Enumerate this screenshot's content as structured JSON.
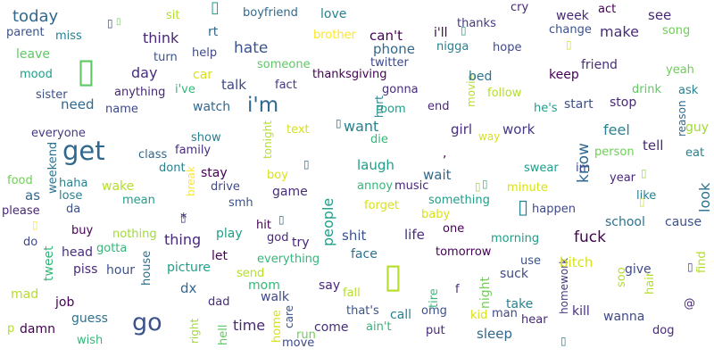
{
  "words": [
    {
      "text": "today",
      "color": "#31688e"
    },
    {
      "text": "parent",
      "color": "#3b528b"
    },
    {
      "text": "miss",
      "color": "#26828e"
    },
    {
      "text": "leave",
      "color": "#5ec962"
    },
    {
      "text": "mood",
      "color": "#1f9e89"
    },
    {
      "text": "sister",
      "color": "#3b528b"
    },
    {
      "text": "need",
      "color": "#31688e"
    },
    {
      "text": "everyone",
      "color": "#443983"
    },
    {
      "text": "get",
      "color": "#31688e"
    },
    {
      "text": "food",
      "color": "#6ece58"
    },
    {
      "text": "as",
      "color": "#31688e"
    },
    {
      "text": "please",
      "color": "#482878"
    },
    {
      "text": "do",
      "color": "#3e4989"
    },
    {
      "text": "mad",
      "color": "#b5de2b"
    },
    {
      "text": "p",
      "color": "#b5de2b"
    },
    {
      "text": "damn",
      "color": "#440154"
    },
    {
      "text": "haha",
      "color": "#26828e"
    },
    {
      "text": "lose",
      "color": "#26828e"
    },
    {
      "text": "da",
      "color": "#3b528b"
    },
    {
      "text": "tweet",
      "color": "#35b779"
    },
    {
      "text": "head",
      "color": "#472d7b"
    },
    {
      "text": "job",
      "color": "#440154"
    },
    {
      "text": "guess",
      "color": "#2c728e"
    },
    {
      "text": "wish",
      "color": "#35b779"
    },
    {
      "text": "go",
      "color": "#3b528b"
    },
    {
      "text": "weekend",
      "color": "#2c728e"
    },
    {
      "text": "wake",
      "color": "#b5de2b"
    },
    {
      "text": "mean",
      "color": "#1f9e89"
    },
    {
      "text": "buy",
      "color": "#440154"
    },
    {
      "text": "gotta",
      "color": "#35b779"
    },
    {
      "text": "piss",
      "color": "#482878"
    },
    {
      "text": "hour",
      "color": "#3b528b"
    },
    {
      "text": "nothing",
      "color": "#a0da39"
    },
    {
      "text": "house",
      "color": "#2c728e"
    },
    {
      "text": "sit",
      "color": "#b5de2b"
    },
    {
      "text": "think",
      "color": "#482878"
    },
    {
      "text": "turn",
      "color": "#3b528b"
    },
    {
      "text": "day",
      "color": "#472d7b"
    },
    {
      "text": "anything",
      "color": "#482878"
    },
    {
      "text": "name",
      "color": "#3e4989"
    },
    {
      "text": "class",
      "color": "#31688e"
    },
    {
      "text": "dont",
      "color": "#26828e"
    },
    {
      "text": "break",
      "color": "#fde725"
    },
    {
      "text": "*",
      "color": "#443983"
    },
    {
      "text": "thing",
      "color": "#482878"
    },
    {
      "text": "picture",
      "color": "#1f9e89"
    },
    {
      "text": "dx",
      "color": "#31688e"
    },
    {
      "text": "right",
      "color": "#a0da39"
    },
    {
      "text": "dad",
      "color": "#472d7b"
    },
    {
      "text": "rt",
      "color": "#31688e"
    },
    {
      "text": "help",
      "color": "#3e4989"
    },
    {
      "text": "car",
      "color": "#d8e219"
    },
    {
      "text": "i've",
      "color": "#35b779"
    },
    {
      "text": "watch",
      "color": "#31688e"
    },
    {
      "text": "show",
      "color": "#26828e"
    },
    {
      "text": "family",
      "color": "#472d7b"
    },
    {
      "text": "stay",
      "color": "#440154"
    },
    {
      "text": "drive",
      "color": "#3e4989"
    },
    {
      "text": "smh",
      "color": "#3b528b"
    },
    {
      "text": "play",
      "color": "#1f9e89"
    },
    {
      "text": "let",
      "color": "#440154"
    },
    {
      "text": "mom",
      "color": "#35b779"
    },
    {
      "text": "time",
      "color": "#482878"
    },
    {
      "text": "hell",
      "color": "#5ec962"
    },
    {
      "text": "boyfriend",
      "color": "#31688e"
    },
    {
      "text": "hate",
      "color": "#3b528b"
    },
    {
      "text": "i'm",
      "color": "#31688e"
    },
    {
      "text": "talk",
      "color": "#3e4989"
    },
    {
      "text": "tonight",
      "color": "#b5de2b"
    },
    {
      "text": "boy",
      "color": "#d8e219"
    },
    {
      "text": "game",
      "color": "#472d7b"
    },
    {
      "text": "hit",
      "color": "#440154"
    },
    {
      "text": "god",
      "color": "#482878"
    },
    {
      "text": "everything",
      "color": "#35b779"
    },
    {
      "text": "send",
      "color": "#b5de2b"
    },
    {
      "text": "walk",
      "color": "#3e4989"
    },
    {
      "text": "home",
      "color": "#d8e219"
    },
    {
      "text": "care",
      "color": "#3b528b"
    },
    {
      "text": "move",
      "color": "#3e4989"
    },
    {
      "text": "run",
      "color": "#6ece58"
    },
    {
      "text": "love",
      "color": "#26828e"
    },
    {
      "text": "brother",
      "color": "#fde725"
    },
    {
      "text": "someone",
      "color": "#5ec962"
    },
    {
      "text": "fact",
      "color": "#443983"
    },
    {
      "text": "text",
      "color": "#d8e219"
    },
    {
      "text": "try",
      "color": "#482878"
    },
    {
      "text": "people",
      "color": "#1f9e89"
    },
    {
      "text": "say",
      "color": "#482878"
    },
    {
      "text": "come",
      "color": "#472d7b"
    },
    {
      "text": "shit",
      "color": "#3b528b"
    },
    {
      "text": "fall",
      "color": "#b5de2b"
    },
    {
      "text": "that's",
      "color": "#3b528b"
    },
    {
      "text": "ain't",
      "color": "#35b779"
    },
    {
      "text": "thanksgiving",
      "color": "#440154"
    },
    {
      "text": "can't",
      "color": "#440154"
    },
    {
      "text": "phone",
      "color": "#31688e"
    },
    {
      "text": "twitter",
      "color": "#3e4989"
    },
    {
      "text": "want",
      "color": "#26828e"
    },
    {
      "text": "laugh",
      "color": "#1f9e89"
    },
    {
      "text": "annoy",
      "color": "#35b779"
    },
    {
      "text": "music",
      "color": "#482878"
    },
    {
      "text": "hurt",
      "color": "#26828e"
    },
    {
      "text": "room",
      "color": "#1f9e89"
    },
    {
      "text": "die",
      "color": "#35b779"
    },
    {
      "text": "forget",
      "color": "#d8e219"
    },
    {
      "text": "gonna",
      "color": "#472d7b"
    },
    {
      "text": "face",
      "color": "#2c728e"
    },
    {
      "text": "call",
      "color": "#26828e"
    },
    {
      "text": "tire",
      "color": "#35b779"
    },
    {
      "text": "i'll",
      "color": "#440154"
    },
    {
      "text": "nigga",
      "color": "#26828e"
    },
    {
      "text": "movie",
      "color": "#b5de2b"
    },
    {
      "text": "end",
      "color": "#482878"
    },
    {
      "text": "girl",
      "color": "#472d7b"
    },
    {
      "text": "wait",
      "color": "#31688e"
    },
    {
      "text": "something",
      "color": "#1f9e89"
    },
    {
      "text": "baby",
      "color": "#d8e219"
    },
    {
      "text": "life",
      "color": "#472d7b"
    },
    {
      "text": "one",
      "color": "#440154"
    },
    {
      "text": "tomorrow",
      "color": "#440154"
    },
    {
      "text": "omg",
      "color": "#3b528b"
    },
    {
      "text": "put",
      "color": "#482878"
    },
    {
      "text": "f",
      "color": "#472d7b"
    },
    {
      "text": "night",
      "color": "#6ece58"
    },
    {
      "text": "thanks",
      "color": "#443983"
    },
    {
      "text": "cry",
      "color": "#482878"
    },
    {
      "text": "bed",
      "color": "#2c728e"
    },
    {
      "text": "hope",
      "color": "#3e4989"
    },
    {
      "text": "follow",
      "color": "#b5de2b"
    },
    {
      "text": "way",
      "color": "#d8e219"
    },
    {
      "text": "work",
      "color": "#443983"
    },
    {
      "text": "minute",
      "color": "#d8e219"
    },
    {
      "text": "morning",
      "color": "#1f9e89"
    },
    {
      "text": "kid",
      "color": "#d8e219"
    },
    {
      "text": "man",
      "color": "#3e4989"
    },
    {
      "text": "sleep",
      "color": "#31688e"
    },
    {
      "text": "suck",
      "color": "#3e4989"
    },
    {
      "text": "take",
      "color": "#26828e"
    },
    {
      "text": "hear",
      "color": "#482878"
    },
    {
      "text": "use",
      "color": "#3b528b"
    },
    {
      "text": "homework",
      "color": "#443983"
    },
    {
      "text": "week",
      "color": "#482878"
    },
    {
      "text": "act",
      "color": "#440154"
    },
    {
      "text": "change",
      "color": "#3b528b"
    },
    {
      "text": "make",
      "color": "#472d7b"
    },
    {
      "text": "see",
      "color": "#482878"
    },
    {
      "text": "song",
      "color": "#6ece58"
    },
    {
      "text": "friend",
      "color": "#472d7b"
    },
    {
      "text": "keep",
      "color": "#440154"
    },
    {
      "text": "yeah",
      "color": "#6ece58"
    },
    {
      "text": "start",
      "color": "#3b528b"
    },
    {
      "text": "he's",
      "color": "#1f9e89"
    },
    {
      "text": "stop",
      "color": "#482878"
    },
    {
      "text": "drink",
      "color": "#5ec962"
    },
    {
      "text": "ask",
      "color": "#26828e"
    },
    {
      "text": "reason",
      "color": "#31688e"
    },
    {
      "text": "guy",
      "color": "#a0da39"
    },
    {
      "text": "feel",
      "color": "#26828e"
    },
    {
      "text": "tell",
      "color": "#482878"
    },
    {
      "text": "know",
      "color": "#31688e"
    },
    {
      "text": "person",
      "color": "#6ece58"
    },
    {
      "text": "eat",
      "color": "#26828e"
    },
    {
      "text": "swear",
      "color": "#1f9e89"
    },
    {
      "text": "im",
      "color": "#3e4989"
    },
    {
      "text": "year",
      "color": "#482878"
    },
    {
      "text": "like",
      "color": "#26828e"
    },
    {
      "text": "look",
      "color": "#2c728e"
    },
    {
      "text": "happen",
      "color": "#3e4989"
    },
    {
      "text": "school",
      "color": "#2c728e"
    },
    {
      "text": "cause",
      "color": "#3b528b"
    },
    {
      "text": "fuck",
      "color": "#440154"
    },
    {
      "text": "bitch",
      "color": "#d8e219"
    },
    {
      "text": "give",
      "color": "#3e4989"
    },
    {
      "text": "find",
      "color": "#b5de2b"
    },
    {
      "text": "soo",
      "color": "#b5de2b"
    },
    {
      "text": "hair",
      "color": "#b5de2b"
    },
    {
      "text": "kill",
      "color": "#472d7b"
    },
    {
      "text": "wanna",
      "color": "#3e4989"
    },
    {
      "text": "@",
      "color": "#482878"
    },
    {
      "text": "dog",
      "color": "#482878"
    },
    {
      "text": ",",
      "color": "#440154"
    }
  ],
  "symbols": [
    {
      "text": "▯",
      "color": "#5ec962"
    },
    {
      "text": "▯",
      "color": "#1f9e89"
    },
    {
      "text": "▯",
      "color": "#3b528b"
    },
    {
      "text": "▯",
      "color": "#2c728e"
    },
    {
      "text": "▯",
      "color": "#b5de2b"
    },
    {
      "text": "▯",
      "color": "#26828e"
    },
    {
      "text": "▯",
      "color": "#2c728e"
    },
    {
      "text": "▯",
      "color": "#a0da39"
    },
    {
      "text": "▯",
      "color": "#d8e219"
    },
    {
      "text": "▯",
      "color": "#482878"
    },
    {
      "text": "▯",
      "color": "#2c728e"
    },
    {
      "text": "▯",
      "color": "#fde725"
    },
    {
      "text": "▯",
      "color": "#26828e"
    },
    {
      "text": "▯",
      "color": "#3e4989"
    },
    {
      "text": "▯",
      "color": "#1f9e89"
    },
    {
      "text": "▯",
      "color": "#a0da39"
    },
    {
      "text": "▯",
      "color": "#35b779"
    },
    {
      "text": "▯",
      "color": "#d8e219"
    },
    {
      "text": "▯",
      "color": "#6ece58"
    }
  ]
}
